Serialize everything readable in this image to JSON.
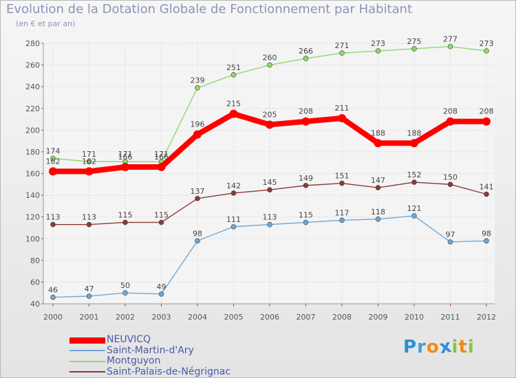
{
  "chart_data": {
    "type": "line",
    "title": "Evolution de la Dotation Globale de Fonctionnement par Habitant",
    "subtitle": "(en € et par an)",
    "xlabel": "",
    "ylabel": "",
    "x": [
      2000,
      2001,
      2002,
      2003,
      2004,
      2005,
      2006,
      2007,
      2008,
      2009,
      2010,
      2011,
      2012
    ],
    "ylim": [
      40,
      280
    ],
    "yticks": [
      40,
      60,
      80,
      100,
      120,
      140,
      160,
      180,
      200,
      220,
      240,
      260,
      280
    ],
    "grid": true,
    "legend_position": "bottom-left",
    "series": [
      {
        "name": "NEUVICQ",
        "color": "#ff0000",
        "style": "thick",
        "values": [
          162,
          162,
          166,
          166,
          196,
          215,
          205,
          208,
          211,
          188,
          188,
          208,
          208
        ]
      },
      {
        "name": "Saint-Martin-d'Ary",
        "color": "#6ea7d6",
        "style": "thin",
        "values": [
          46,
          47,
          50,
          49,
          98,
          111,
          113,
          115,
          117,
          118,
          121,
          97,
          98
        ]
      },
      {
        "name": "Montguyon",
        "color": "#8fd86a",
        "style": "thin",
        "values": [
          174,
          171,
          171,
          171,
          239,
          251,
          260,
          266,
          271,
          273,
          275,
          277,
          273
        ]
      },
      {
        "name": "Saint-Palais-de-Négrignac",
        "color": "#8a3a3a",
        "style": "thin",
        "values": [
          113,
          113,
          115,
          115,
          137,
          142,
          145,
          149,
          151,
          147,
          152,
          150,
          141
        ]
      }
    ]
  },
  "logo": {
    "letters": [
      "P",
      "r",
      "o",
      "x",
      "i",
      "t",
      "i"
    ],
    "colors": [
      "#2b8fd8",
      "#3aa0e0",
      "#f08a1c",
      "#2b8fd8",
      "#86c440",
      "#f08a1c",
      "#86c440"
    ]
  }
}
